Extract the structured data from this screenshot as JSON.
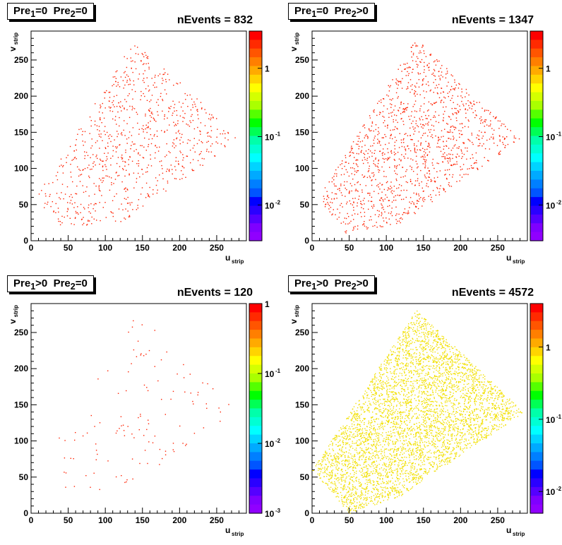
{
  "chart_data": [
    {
      "type": "heatmap",
      "title_main": "Pre",
      "title_sub1": "1",
      "title_op1": "=0",
      "title_sub2": "2",
      "title_op2": "=0",
      "stats": "nEvents = 832",
      "xlabel_main": "u",
      "xlabel_sub": "strip",
      "ylabel_main": "v",
      "ylabel_sub": "strip",
      "xlim": [
        0,
        290
      ],
      "ylim": [
        0,
        290
      ],
      "xticks": [
        0,
        50,
        100,
        150,
        200,
        250
      ],
      "yticks": [
        0,
        50,
        100,
        150,
        200,
        250
      ],
      "colorbar": {
        "scale": "log",
        "min": 0.003,
        "max": 3.5,
        "labels": [
          {
            "base": "1",
            "exp": ""
          },
          {
            "base": "10",
            "exp": "-1"
          },
          {
            "base": "10",
            "exp": "-2"
          }
        ]
      },
      "density": 832,
      "point_color": "#ff2000",
      "region": [
        [
          5,
          60
        ],
        [
          40,
          20
        ],
        [
          120,
          25
        ],
        [
          280,
          140
        ],
        [
          140,
          280
        ]
      ]
    },
    {
      "type": "heatmap",
      "title_main": "Pre",
      "title_sub1": "1",
      "title_op1": "=0",
      "title_sub2": "2",
      "title_op2": ">0",
      "stats": "nEvents = 1347",
      "xlabel_main": "u",
      "xlabel_sub": "strip",
      "ylabel_main": "v",
      "ylabel_sub": "strip",
      "xlim": [
        0,
        290
      ],
      "ylim": [
        0,
        290
      ],
      "xticks": [
        0,
        50,
        100,
        150,
        200,
        250
      ],
      "yticks": [
        0,
        50,
        100,
        150,
        200,
        250
      ],
      "colorbar": {
        "scale": "log",
        "min": 0.003,
        "max": 3.5,
        "labels": [
          {
            "base": "1",
            "exp": ""
          },
          {
            "base": "10",
            "exp": "-1"
          },
          {
            "base": "10",
            "exp": "-2"
          }
        ]
      },
      "density": 1347,
      "point_color": "#ff2000",
      "region": [
        [
          8,
          60
        ],
        [
          45,
          10
        ],
        [
          120,
          25
        ],
        [
          280,
          140
        ],
        [
          140,
          280
        ]
      ]
    },
    {
      "type": "heatmap",
      "title_main": "Pre",
      "title_sub1": "1",
      "title_op1": ">0",
      "title_sub2": "2",
      "title_op2": "=0",
      "stats": "nEvents = 120",
      "xlabel_main": "u",
      "xlabel_sub": "strip",
      "ylabel_main": "v",
      "ylabel_sub": "strip",
      "xlim": [
        0,
        290
      ],
      "ylim": [
        0,
        290
      ],
      "xticks": [
        0,
        50,
        100,
        150,
        200,
        250
      ],
      "yticks": [
        0,
        50,
        100,
        150,
        200,
        250
      ],
      "colorbar": {
        "scale": "log",
        "min": 0.001,
        "max": 1,
        "labels": [
          {
            "base": "1",
            "exp": ""
          },
          {
            "base": "10",
            "exp": "-1"
          },
          {
            "base": "10",
            "exp": "-2"
          },
          {
            "base": "10",
            "exp": "-3"
          }
        ]
      },
      "density": 120,
      "point_color": "#ff2000",
      "region": [
        [
          10,
          60
        ],
        [
          50,
          20
        ],
        [
          120,
          25
        ],
        [
          280,
          140
        ],
        [
          140,
          280
        ]
      ]
    },
    {
      "type": "heatmap",
      "title_main": "Pre",
      "title_sub1": "1",
      "title_op1": ">0",
      "title_sub2": "2",
      "title_op2": ">0",
      "stats": "nEvents = 4572",
      "xlabel_main": "u",
      "xlabel_sub": "strip",
      "ylabel_main": "v",
      "ylabel_sub": "strip",
      "xlim": [
        0,
        290
      ],
      "ylim": [
        0,
        290
      ],
      "xticks": [
        0,
        50,
        100,
        150,
        200,
        250
      ],
      "yticks": [
        0,
        50,
        100,
        150,
        200,
        250
      ],
      "colorbar": {
        "scale": "log",
        "min": 0.005,
        "max": 4,
        "labels": [
          {
            "base": "1",
            "exp": ""
          },
          {
            "base": "10",
            "exp": "-1"
          },
          {
            "base": "10",
            "exp": "-2"
          }
        ]
      },
      "density": 4572,
      "point_color": "#f2e000",
      "region": [
        [
          0,
          60
        ],
        [
          50,
          0
        ],
        [
          120,
          25
        ],
        [
          285,
          140
        ],
        [
          140,
          282
        ]
      ]
    }
  ]
}
